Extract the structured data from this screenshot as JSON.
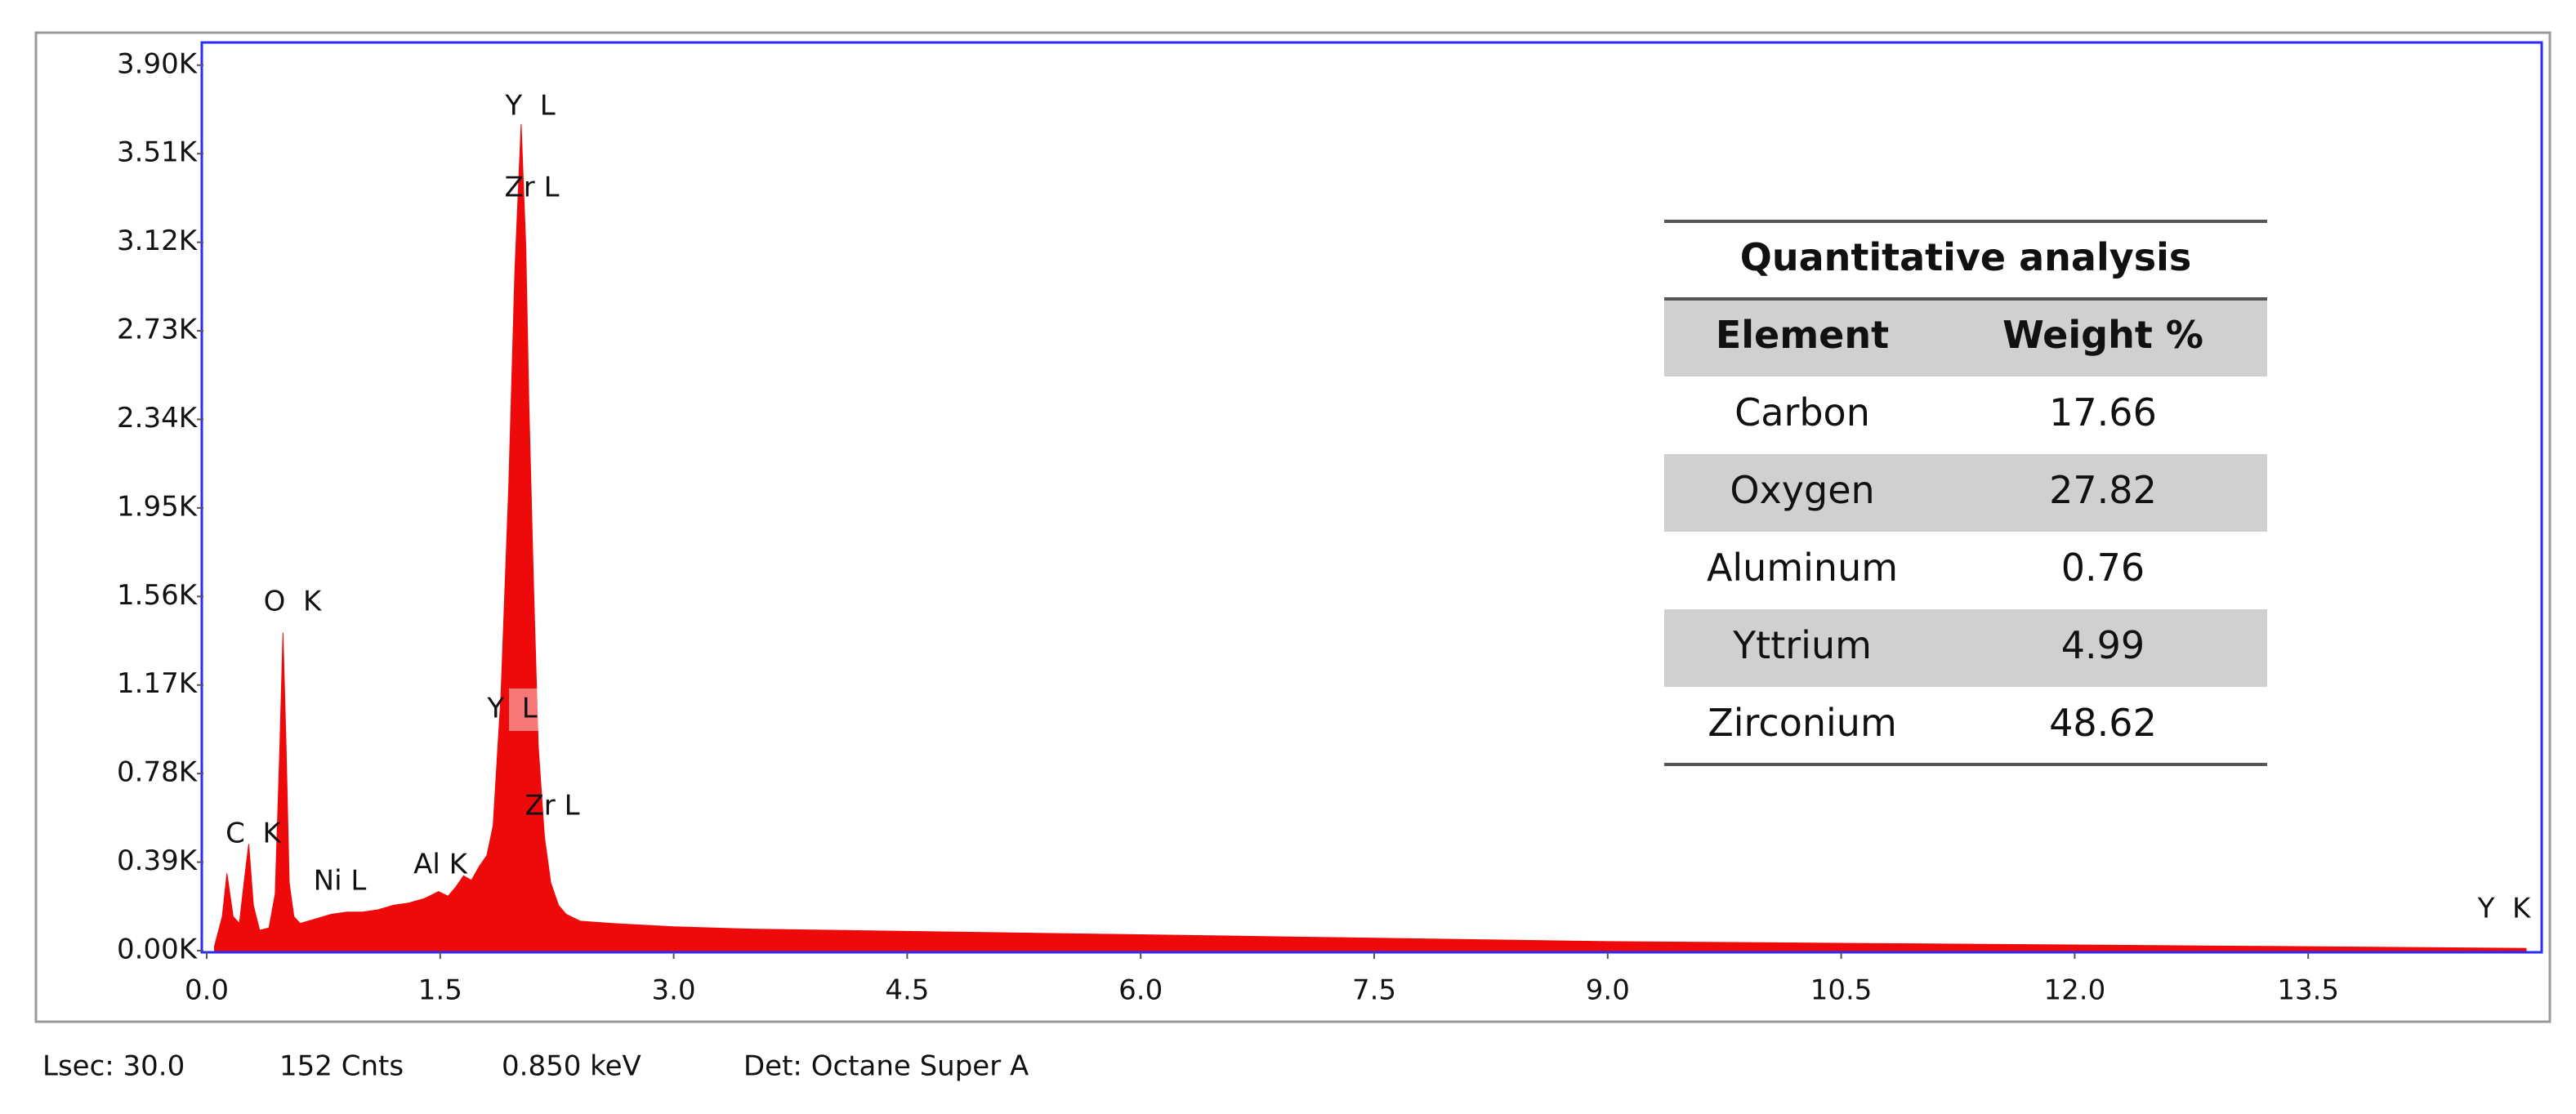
{
  "chart_data": {
    "type": "area",
    "color": "#ee0a0a",
    "frame_color": "#2b2bff",
    "x": [
      0.05,
      0.1,
      0.13,
      0.17,
      0.21,
      0.24,
      0.27,
      0.3,
      0.34,
      0.4,
      0.44,
      0.47,
      0.49,
      0.51,
      0.53,
      0.56,
      0.6,
      0.7,
      0.8,
      0.9,
      1.0,
      1.1,
      1.2,
      1.3,
      1.4,
      1.49,
      1.55,
      1.6,
      1.65,
      1.7,
      1.75,
      1.8,
      1.84,
      1.89,
      1.94,
      1.98,
      2.02,
      2.05,
      2.07,
      2.1,
      2.13,
      2.17,
      2.21,
      2.26,
      2.31,
      2.4,
      2.6,
      3.0,
      3.5,
      4.0,
      5.0,
      6.0,
      7.0,
      8.0,
      9.0,
      10.0,
      11.0,
      12.0,
      13.0,
      14.0,
      14.9
    ],
    "values": [
      20,
      150,
      340,
      150,
      120,
      300,
      470,
      200,
      90,
      100,
      250,
      900,
      1400,
      900,
      300,
      150,
      120,
      140,
      160,
      170,
      170,
      180,
      200,
      210,
      230,
      260,
      240,
      280,
      330,
      310,
      370,
      420,
      550,
      1120,
      2040,
      3000,
      3640,
      3100,
      2400,
      1600,
      900,
      500,
      300,
      200,
      160,
      130,
      120,
      105,
      95,
      90,
      80,
      70,
      60,
      50,
      40,
      35,
      30,
      25,
      20,
      15,
      10
    ],
    "xlim": [
      0,
      15
    ],
    "ylim": [
      0,
      4000
    ],
    "xticks": [
      {
        "value": 0,
        "label": "0.0"
      },
      1.5,
      {
        "value": 3,
        "label": "3.0"
      },
      4.5,
      {
        "value": 6,
        "label": "6.0"
      },
      7.5,
      {
        "value": 9,
        "label": "9.0"
      },
      10.5,
      {
        "value": 12,
        "label": "12.0"
      },
      13.5
    ],
    "yticks": [
      {
        "value": 0,
        "label": "0.00K"
      },
      {
        "value": 390,
        "label": "0.39K"
      },
      {
        "value": 780,
        "label": "0.78K"
      },
      {
        "value": 1170,
        "label": "1.17K"
      },
      {
        "value": 1560,
        "label": "1.56K"
      },
      {
        "value": 1950,
        "label": "1.95K"
      },
      {
        "value": 2340,
        "label": "2.34K"
      },
      {
        "value": 2730,
        "label": "2.73K"
      },
      {
        "value": 3120,
        "label": "3.12K"
      },
      {
        "value": 3510,
        "label": "3.51K"
      },
      {
        "value": 3900,
        "label": "3.90K"
      }
    ],
    "annotations": [
      "Y  L",
      "Zr L",
      "O  K",
      "C  K",
      "Ni L",
      "Al K",
      "Y  L",
      "Zr L",
      "Y  K"
    ],
    "table": {
      "title": "Quantitative analysis",
      "columns": [
        "Element",
        "Weight %"
      ],
      "rows": [
        [
          "Carbon",
          "17.66"
        ],
        [
          "Oxygen",
          "27.82"
        ],
        [
          "Aluminum",
          "0.76"
        ],
        [
          "Yttrium",
          "4.99"
        ],
        [
          "Zirconium",
          "48.62"
        ]
      ]
    },
    "footer": [
      "Lsec: 30.0",
      "152 Cnts",
      "0.850 keV",
      "Det: Octane Super A"
    ]
  }
}
